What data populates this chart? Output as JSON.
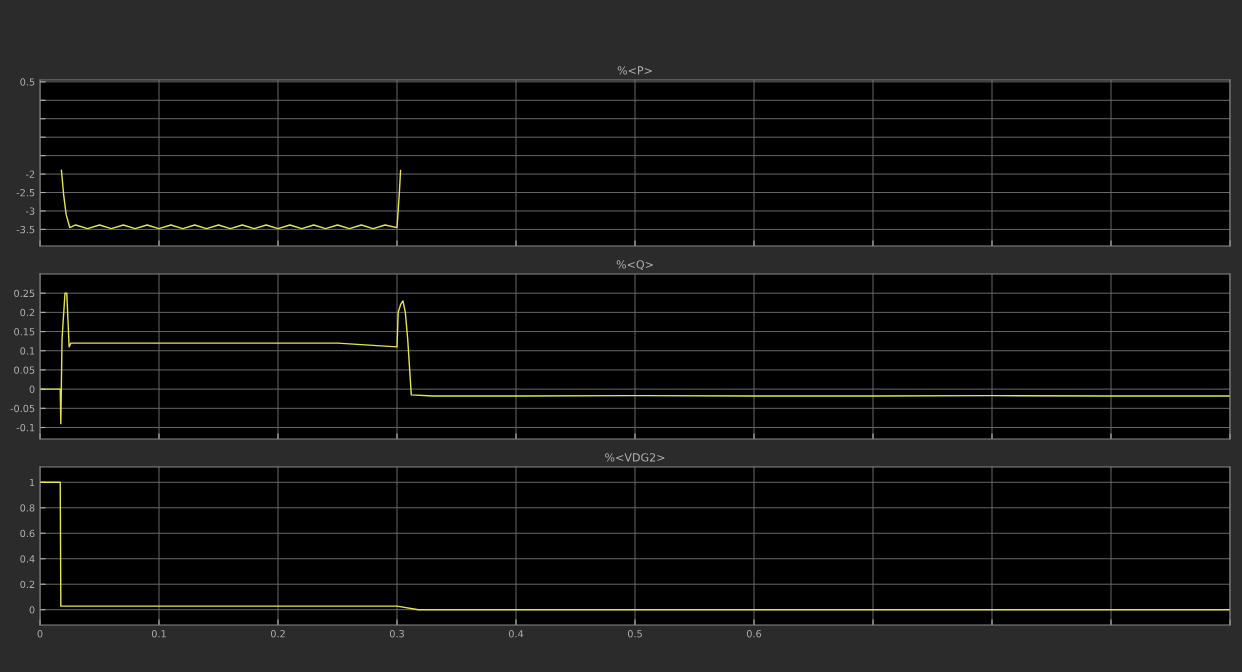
{
  "chart_data": [
    {
      "type": "line",
      "title": "%<P>",
      "xlim": [
        0,
        1
      ],
      "ylim": [
        -3.95,
        0.55
      ],
      "xticks": [
        0,
        0.1,
        0.2,
        0.3,
        0.4,
        0.5,
        0.6,
        0.7,
        0.8,
        0.9,
        1
      ],
      "yticks": [
        0.5,
        {
          "value": 0,
          "label": null
        },
        {
          "value": -0.5,
          "label": null
        },
        {
          "value": -1,
          "label": null
        },
        {
          "value": -1.5,
          "label": null
        },
        -2,
        -2.5,
        -3,
        -3.5
      ],
      "tick_labels": "y",
      "grid": true,
      "series": [
        {
          "color": "#e6e64c",
          "x": [
            0.018,
            0.02,
            0.022,
            0.025,
            0.03,
            0.04,
            0.05,
            0.06,
            0.07,
            0.08,
            0.09,
            0.1,
            0.11,
            0.12,
            0.13,
            0.14,
            0.15,
            0.16,
            0.17,
            0.18,
            0.19,
            0.2,
            0.21,
            0.22,
            0.23,
            0.24,
            0.25,
            0.26,
            0.27,
            0.28,
            0.29,
            0.3,
            0.302,
            0.303
          ],
          "values": [
            -1.9,
            -2.6,
            -3.1,
            -3.45,
            -3.38,
            -3.48,
            -3.38,
            -3.48,
            -3.38,
            -3.48,
            -3.38,
            -3.48,
            -3.38,
            -3.48,
            -3.38,
            -3.48,
            -3.38,
            -3.48,
            -3.38,
            -3.48,
            -3.38,
            -3.48,
            -3.38,
            -3.48,
            -3.38,
            -3.48,
            -3.38,
            -3.48,
            -3.38,
            -3.48,
            -3.38,
            -3.45,
            -2.5,
            -1.9
          ]
        }
      ]
    },
    {
      "type": "line",
      "title": "%<Q>",
      "xlim": [
        0,
        1
      ],
      "ylim": [
        -0.13,
        0.3
      ],
      "xticks": [
        0,
        0.1,
        0.2,
        0.3,
        0.4,
        0.5,
        0.6,
        0.7,
        0.8,
        0.9,
        1
      ],
      "yticks": [
        0.25,
        0.2,
        0.15,
        0.1,
        0.05,
        0,
        -0.05,
        -0.1
      ],
      "tick_labels": "y",
      "grid": true,
      "series": [
        {
          "color": "#e6e64c",
          "x": [
            0,
            0.017,
            0.0175,
            0.0185,
            0.021,
            0.0225,
            0.0245,
            0.026,
            0.05,
            0.1,
            0.15,
            0.2,
            0.25,
            0.3,
            0.301,
            0.303,
            0.305,
            0.307,
            0.309,
            0.312,
            0.33,
            0.4,
            0.5,
            0.6,
            0.7,
            0.8,
            0.9,
            1
          ],
          "values": [
            0,
            0,
            -0.09,
            0.13,
            0.25,
            0.25,
            0.11,
            0.12,
            0.12,
            0.12,
            0.12,
            0.12,
            0.12,
            0.11,
            0.2,
            0.22,
            0.23,
            0.2,
            0.13,
            -0.015,
            -0.018,
            -0.018,
            -0.017,
            -0.018,
            -0.018,
            -0.017,
            -0.018,
            -0.018
          ]
        }
      ]
    },
    {
      "type": "line",
      "title": "%<VDG2>",
      "xlim": [
        0,
        1
      ],
      "ylim": [
        -0.12,
        1.12
      ],
      "xticks": [
        0,
        0.1,
        0.2,
        0.3,
        0.4,
        0.5,
        0.6,
        {
          "value": 0.7,
          "label": null
        },
        {
          "value": 0.8,
          "label": null
        },
        {
          "value": 0.9,
          "label": null
        },
        {
          "value": 1,
          "label": null
        }
      ],
      "yticks": [
        1,
        0.8,
        0.6,
        0.4,
        0.2,
        0
      ],
      "grid": true,
      "series": [
        {
          "color": "#e6e64c",
          "x": [
            0,
            0.017,
            0.0175,
            0.1,
            0.2,
            0.3,
            0.318,
            0.5,
            1
          ],
          "values": [
            1,
            1,
            0.028,
            0.028,
            0.028,
            0.028,
            0,
            0,
            0
          ]
        }
      ]
    }
  ]
}
